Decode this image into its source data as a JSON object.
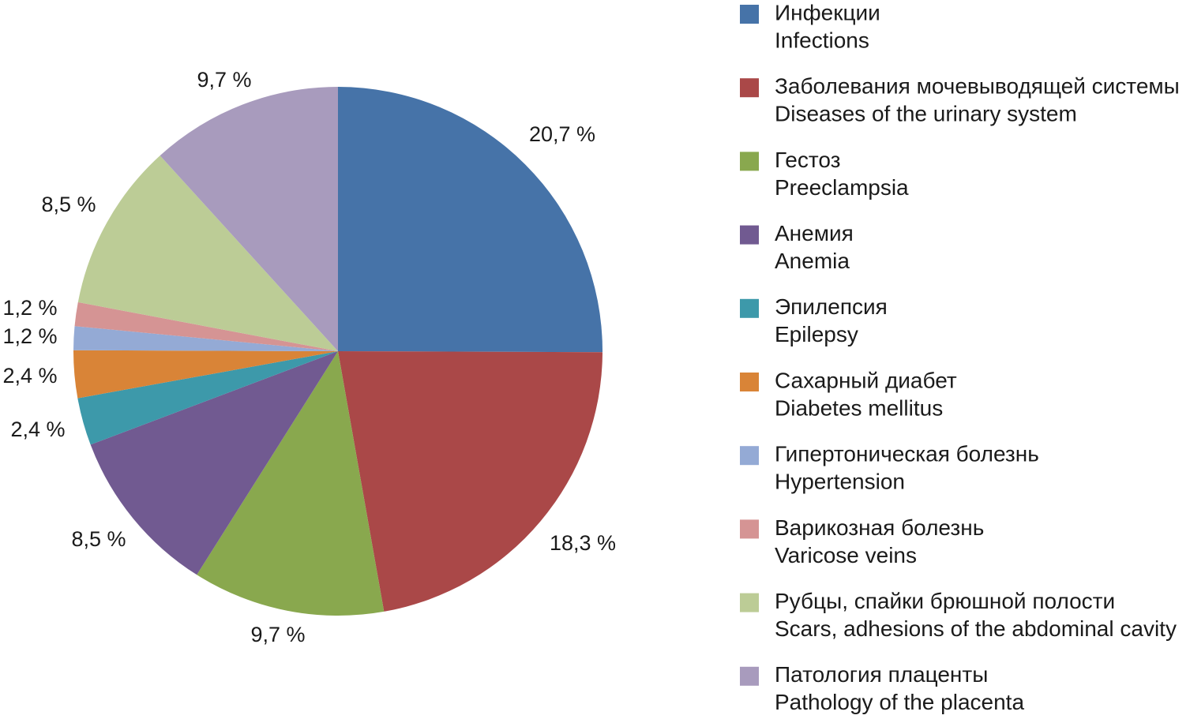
{
  "chart_data": {
    "type": "pie",
    "slices": [
      {
        "label": "Инфекции",
        "label_en": "Infections",
        "value": 20.7,
        "value_text": "20,7 %",
        "color": "#4673a8"
      },
      {
        "label": "Заболевания мочевыводящей системы",
        "label_en": "Diseases of the urinary system",
        "value": 18.3,
        "value_text": "18,3 %",
        "color": "#aa4848"
      },
      {
        "label": "Гестоз",
        "label_en": "Preeclampsia",
        "value": 9.7,
        "value_text": "9,7 %",
        "color": "#89a84e"
      },
      {
        "label": "Анемия",
        "label_en": "Anemia",
        "value": 8.5,
        "value_text": "8,5 %",
        "color": "#715a91"
      },
      {
        "label": "Эпилепсия",
        "label_en": "Epilepsy",
        "value": 2.4,
        "value_text": "2,4 %",
        "color": "#3d99aa"
      },
      {
        "label": "Сахарный диабет",
        "label_en": "Diabetes mellitus",
        "value": 2.4,
        "value_text": "2,4 %",
        "color": "#d98437"
      },
      {
        "label": "Гипертоническая болезнь",
        "label_en": "Hypertension",
        "value": 1.2,
        "value_text": "1,2 %",
        "color": "#94aad5"
      },
      {
        "label": "Варикозная болезнь",
        "label_en": "Varicose veins",
        "value": 1.2,
        "value_text": "1,2 %",
        "color": "#d59494"
      },
      {
        "label": "Рубцы, спайки брюшной полости",
        "label_en": "Scars, adhesions of the abdominal cavity",
        "value": 8.5,
        "value_text": "8,5 %",
        "color": "#bccc96"
      },
      {
        "label": "Патология плаценты",
        "label_en": "Pathology of the placenta",
        "value": 9.7,
        "value_text": "9,7 %",
        "color": "#a89bbd"
      }
    ],
    "legend_position": "right"
  }
}
